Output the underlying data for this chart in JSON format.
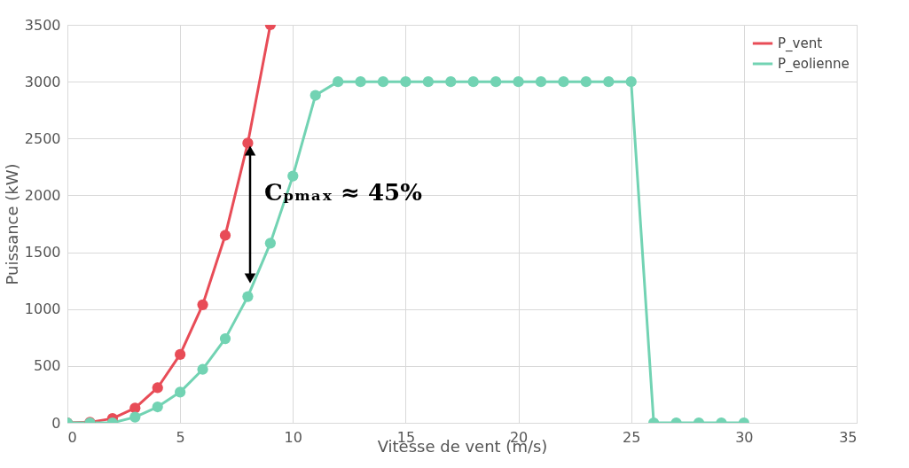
{
  "chart_data": {
    "type": "line",
    "xlabel": "Vitesse de vent (m/s)",
    "ylabel": "Puissance (kW)",
    "x": [
      0,
      1,
      2,
      3,
      4,
      5,
      6,
      7,
      8,
      9,
      10,
      11,
      12,
      13,
      14,
      15,
      16,
      17,
      18,
      19,
      20,
      21,
      22,
      23,
      24,
      25,
      26,
      27,
      28,
      29,
      30
    ],
    "series": [
      {
        "name": "P_vent",
        "color": "#e84c57",
        "x": [
          0,
          1,
          2,
          3,
          4,
          5,
          6,
          7,
          8,
          9
        ],
        "values": [
          0,
          5,
          38,
          130,
          308,
          601,
          1038,
          1649,
          2460,
          3500
        ]
      },
      {
        "name": "P_eolienne",
        "color": "#72d3b3",
        "values": [
          0,
          0,
          0,
          50,
          140,
          270,
          470,
          740,
          1110,
          1580,
          2170,
          2880,
          3000,
          3000,
          3000,
          3000,
          3000,
          3000,
          3000,
          3000,
          3000,
          3000,
          3000,
          3000,
          3000,
          3000,
          0,
          0,
          0,
          0,
          0
        ]
      }
    ],
    "xlim": [
      0,
      35
    ],
    "xticks": [
      0,
      5,
      10,
      15,
      20,
      25,
      30,
      35
    ],
    "ylim": [
      0,
      3500
    ],
    "yticks": [
      0,
      500,
      1000,
      1500,
      2000,
      2500,
      3000,
      3500
    ],
    "annotations": [
      "Cₚₘₐₓ ≈ 45%"
    ],
    "grid": true,
    "legend": "top right",
    "marker": "circle",
    "line_style": "solid"
  }
}
